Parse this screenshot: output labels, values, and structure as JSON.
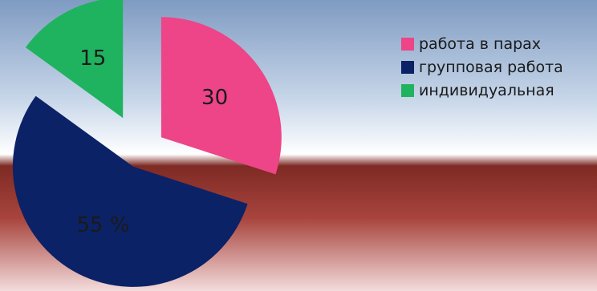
{
  "chart_data": {
    "type": "pie",
    "title": "",
    "slices": [
      {
        "label": "работа в парах",
        "value": 30,
        "value_label": "30",
        "color": "#ee4488"
      },
      {
        "label": "групповая работа",
        "value": 55,
        "value_label": "55 %",
        "color": "#0b2266"
      },
      {
        "label": "индивидуальная",
        "value": 15,
        "value_label": "15",
        "color": "#1fb35f"
      }
    ],
    "exploded": true,
    "legend_position": "right"
  },
  "colors": {
    "background_top": "#7f9bc2",
    "background_middle": "#ffffff",
    "background_bottom": "#a8443d"
  }
}
